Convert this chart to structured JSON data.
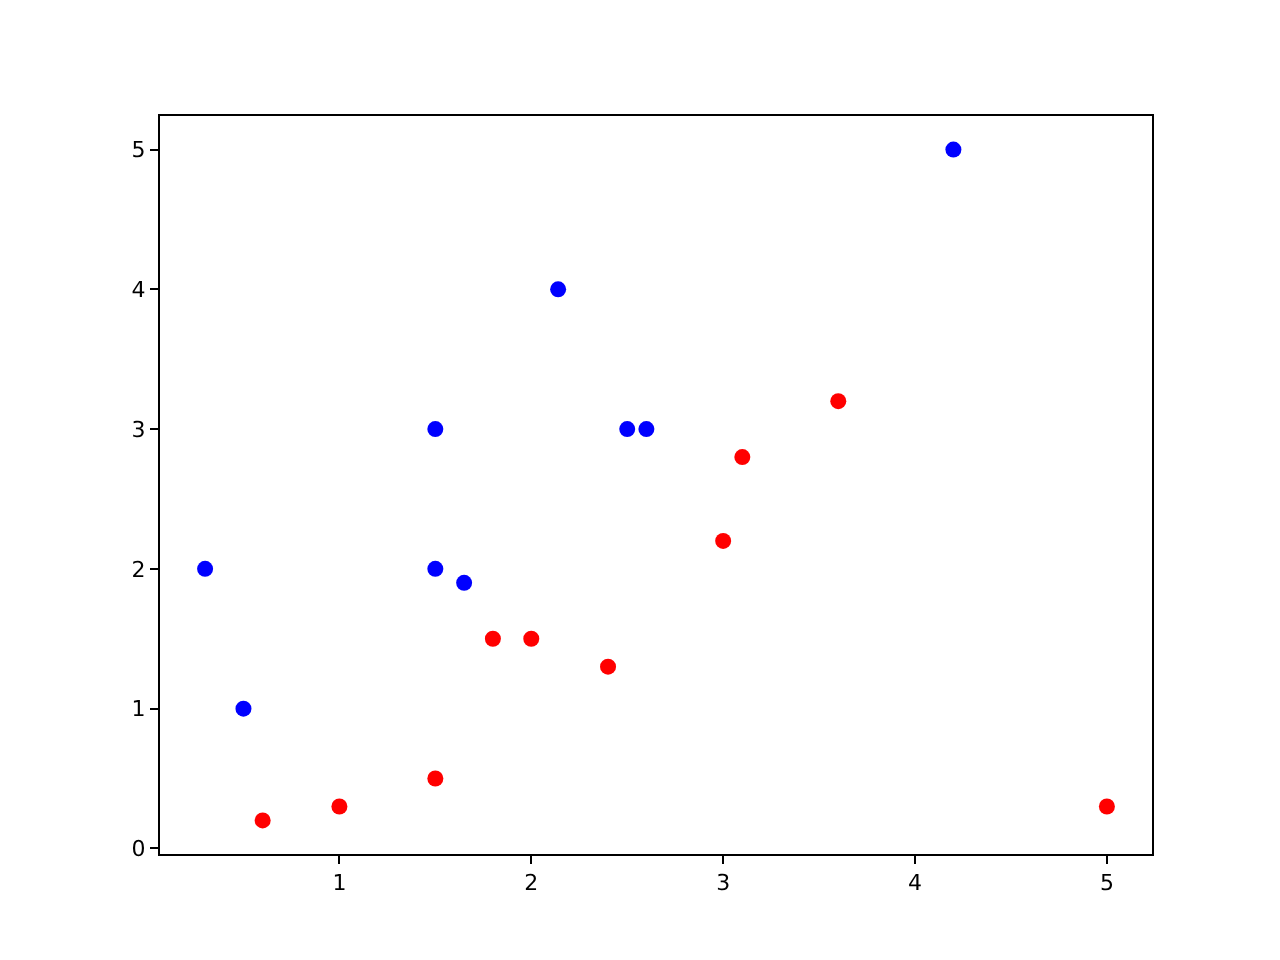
{
  "chart_data": {
    "type": "scatter",
    "marker": "circle",
    "xlim": [
      0.065,
      5.235
    ],
    "ylim": [
      -0.04,
      5.24
    ],
    "xticks": [
      1,
      2,
      3,
      4,
      5
    ],
    "yticks": [
      0,
      1,
      2,
      3,
      4,
      5
    ],
    "series": [
      {
        "color": "#0000ff",
        "x": [
          0.3,
          0.5,
          1.5,
          1.5,
          1.65,
          2.14,
          2.5,
          2.6,
          4.2
        ],
        "values": [
          2,
          1,
          3,
          2,
          1.9,
          4,
          3,
          3,
          5
        ]
      },
      {
        "color": "#ff0000",
        "x": [
          0.6,
          1,
          1.5,
          1.8,
          2,
          2.4,
          3,
          3.1,
          3.6,
          5
        ],
        "values": [
          0.2,
          0.3,
          0.5,
          1.5,
          1.5,
          1.3,
          2.2,
          2.8,
          3.2,
          0.3
        ]
      }
    ]
  }
}
